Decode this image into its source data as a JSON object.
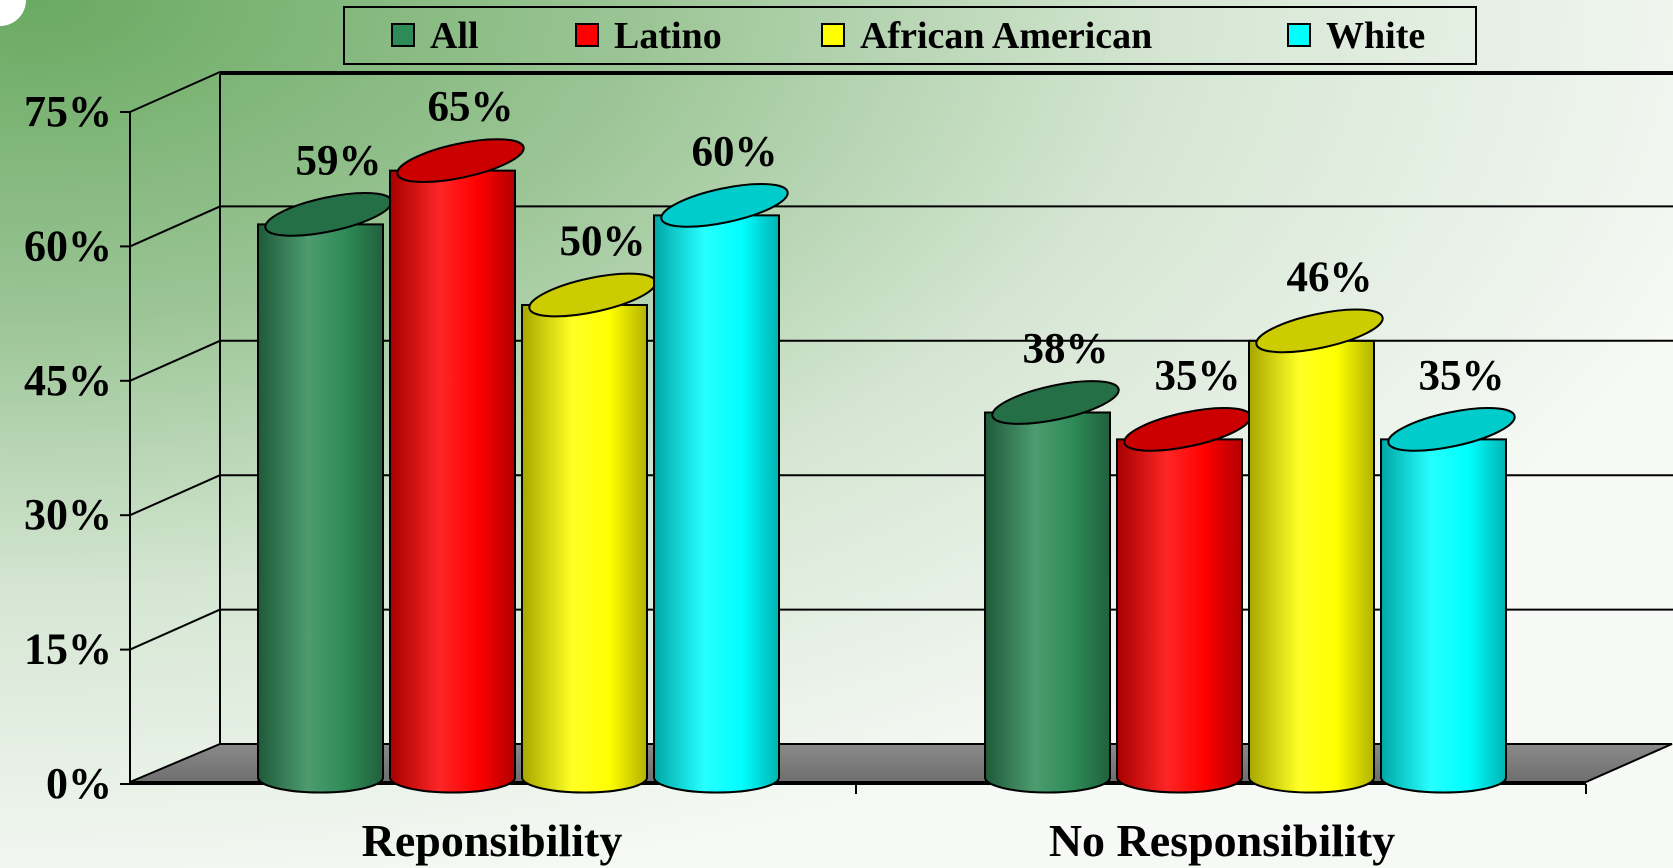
{
  "chart_data": {
    "type": "bar",
    "categories": [
      "Reponsibility",
      "No Responsibility"
    ],
    "series": [
      {
        "name": "All",
        "color": "#2e8b57",
        "values": [
          59,
          38
        ]
      },
      {
        "name": "Latino",
        "color": "#ff0000",
        "values": [
          65,
          35
        ]
      },
      {
        "name": "African American",
        "color": "#ffff00",
        "values": [
          50,
          46
        ]
      },
      {
        "name": "White",
        "color": "#00ffff",
        "values": [
          60,
          35
        ]
      }
    ],
    "data_labels": [
      [
        "59%",
        "38%"
      ],
      [
        "65%",
        "35%"
      ],
      [
        "50%",
        "46%"
      ],
      [
        "60%",
        "35%"
      ]
    ],
    "y_ticks": [
      "0%",
      "15%",
      "30%",
      "45%",
      "60%",
      "75%"
    ],
    "ylim": [
      0,
      75
    ],
    "grid": true,
    "legend_position": "top",
    "bar_shape": "3d-cylinder",
    "title": "",
    "xlabel": "",
    "ylabel": ""
  }
}
